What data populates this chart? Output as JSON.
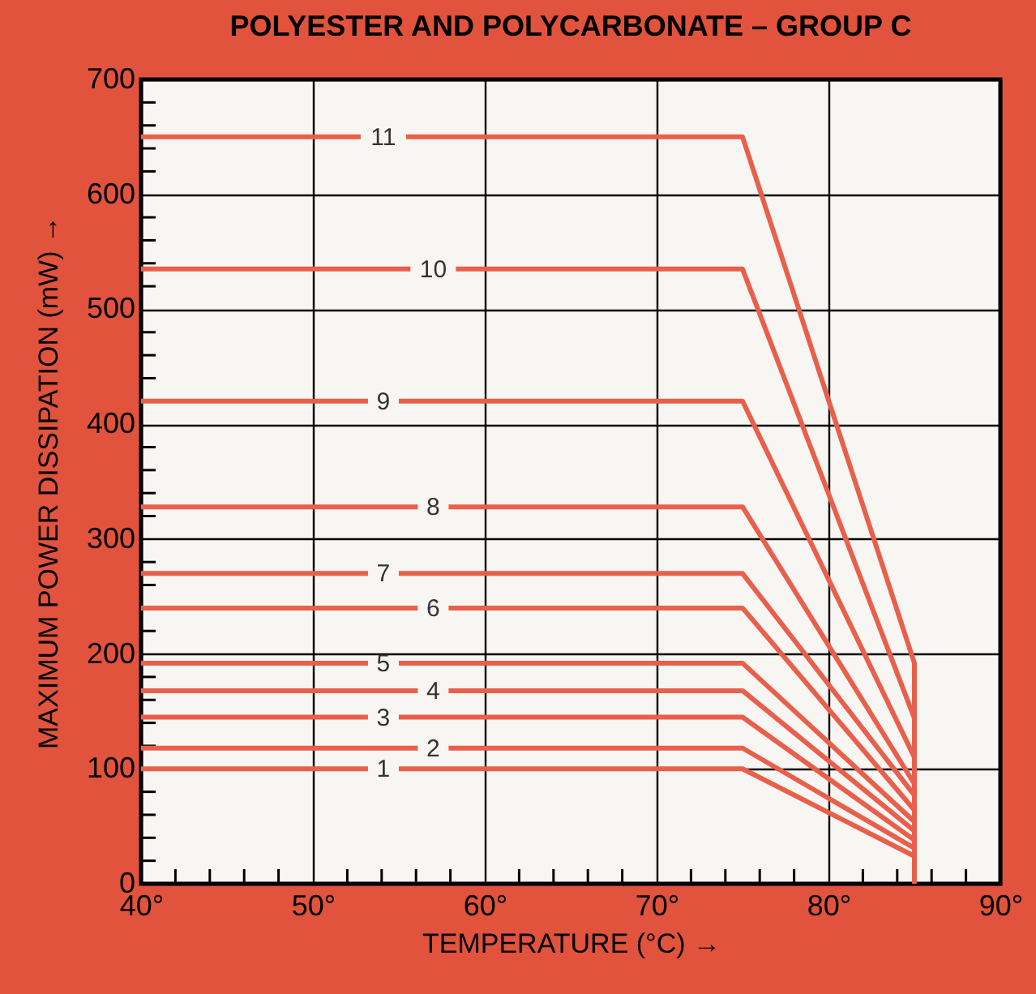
{
  "chart_data": {
    "type": "line",
    "title": "POLYESTER AND POLYCARBONATE – GROUP C",
    "xlabel": "TEMPERATURE (°C) →",
    "ylabel": "MAXIMUM POWER DISSIPATION (mW) →",
    "x": [
      40,
      75,
      85,
      85
    ],
    "xlim": [
      40,
      90
    ],
    "ylim": [
      0,
      700
    ],
    "xticks": [
      {
        "value": 40,
        "label": "40°"
      },
      {
        "value": 42,
        "label": null
      },
      {
        "value": 44,
        "label": null
      },
      {
        "value": 46,
        "label": null
      },
      {
        "value": 48,
        "label": null
      },
      {
        "value": 50,
        "label": "50°"
      },
      {
        "value": 52,
        "label": null
      },
      {
        "value": 54,
        "label": null
      },
      {
        "value": 56,
        "label": null
      },
      {
        "value": 58,
        "label": null
      },
      {
        "value": 60,
        "label": "60°"
      },
      {
        "value": 62,
        "label": null
      },
      {
        "value": 64,
        "label": null
      },
      {
        "value": 66,
        "label": null
      },
      {
        "value": 68,
        "label": null
      },
      {
        "value": 70,
        "label": "70°"
      },
      {
        "value": 72,
        "label": null
      },
      {
        "value": 74,
        "label": null
      },
      {
        "value": 76,
        "label": null
      },
      {
        "value": 78,
        "label": null
      },
      {
        "value": 80,
        "label": "80°"
      },
      {
        "value": 82,
        "label": null
      },
      {
        "value": 84,
        "label": null
      },
      {
        "value": 86,
        "label": null
      },
      {
        "value": 88,
        "label": null
      },
      {
        "value": 90,
        "label": "90°"
      }
    ],
    "yticks": [
      0,
      {
        "value": 20,
        "label": null
      },
      {
        "value": 40,
        "label": null
      },
      {
        "value": 60,
        "label": null
      },
      {
        "value": 80,
        "label": null
      },
      100,
      {
        "value": 120,
        "label": null
      },
      {
        "value": 140,
        "label": null
      },
      {
        "value": 160,
        "label": null
      },
      {
        "value": 180,
        "label": null
      },
      200,
      {
        "value": 220,
        "label": null
      },
      {
        "value": 240,
        "label": null
      },
      {
        "value": 260,
        "label": null
      },
      {
        "value": 280,
        "label": null
      },
      300,
      {
        "value": 320,
        "label": null
      },
      {
        "value": 340,
        "label": null
      },
      {
        "value": 360,
        "label": null
      },
      {
        "value": 380,
        "label": null
      },
      400,
      {
        "value": 420,
        "label": null
      },
      {
        "value": 440,
        "label": null
      },
      {
        "value": 460,
        "label": null
      },
      {
        "value": 480,
        "label": null
      },
      500,
      {
        "value": 520,
        "label": null
      },
      {
        "value": 540,
        "label": null
      },
      {
        "value": 560,
        "label": null
      },
      {
        "value": 580,
        "label": null
      },
      600,
      {
        "value": 620,
        "label": null
      },
      {
        "value": 640,
        "label": null
      },
      {
        "value": 660,
        "label": null
      },
      {
        "value": 680,
        "label": null
      },
      700
    ],
    "grid": true,
    "line_style": "solid",
    "series": [
      {
        "name": "1",
        "color": "#e8604c",
        "values": [
          100,
          100,
          24,
          0
        ]
      },
      {
        "name": "2",
        "color": "#e8604c",
        "values": [
          118,
          118,
          31,
          0
        ]
      },
      {
        "name": "3",
        "color": "#e8604c",
        "values": [
          145,
          145,
          38,
          0
        ]
      },
      {
        "name": "4",
        "color": "#e8604c",
        "values": [
          168,
          168,
          46,
          0
        ]
      },
      {
        "name": "5",
        "color": "#e8604c",
        "values": [
          192,
          192,
          54,
          0
        ]
      },
      {
        "name": "6",
        "color": "#e8604c",
        "values": [
          240,
          240,
          64,
          0
        ]
      },
      {
        "name": "7",
        "color": "#e8604c",
        "values": [
          270,
          270,
          77,
          0
        ]
      },
      {
        "name": "8",
        "color": "#e8604c",
        "values": [
          328,
          328,
          87,
          0
        ]
      },
      {
        "name": "9",
        "color": "#e8604c",
        "values": [
          420,
          420,
          110,
          0
        ]
      },
      {
        "name": "10",
        "color": "#e8604c",
        "values": [
          535,
          535,
          144,
          0
        ]
      },
      {
        "name": "11",
        "color": "#e8604c",
        "values": [
          650,
          650,
          192,
          0
        ]
      }
    ]
  }
}
